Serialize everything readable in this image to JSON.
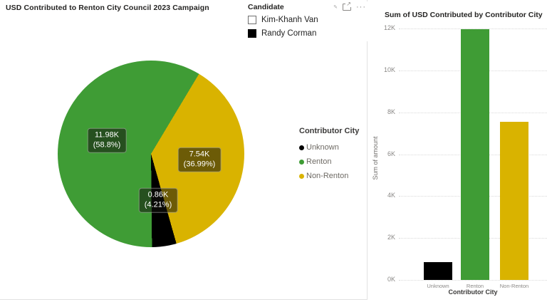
{
  "pie_visual": {
    "title": "USD Contributed to Renton City Council 2023 Campaign",
    "data_labels": [
      {
        "value": "11.98K",
        "pct": "(58.8%)"
      },
      {
        "value": "7.54K",
        "pct": "(36.99%)"
      },
      {
        "value": "0.86K",
        "pct": "(4.21%)"
      }
    ],
    "legend": {
      "title": "Contributor City",
      "items": [
        {
          "label": "Unknown",
          "color": "#000000"
        },
        {
          "label": "Renton",
          "color": "#3f9c35"
        },
        {
          "label": "Non-Renton",
          "color": "#d9b300"
        }
      ]
    }
  },
  "slicer": {
    "title": "Candidate",
    "more_options": "···",
    "items": [
      {
        "label": "Kim-Khanh Van",
        "checked": false
      },
      {
        "label": "Randy Corman",
        "checked": true
      }
    ]
  },
  "bar_visual": {
    "title": "Sum of USD Contributed by Contributor City",
    "y_axis_title": "Sum of amount",
    "x_axis_title": "Contributor City",
    "y_ticks": [
      "12K",
      "10K",
      "8K",
      "6K",
      "4K",
      "2K",
      "0K"
    ]
  },
  "chart_data": [
    {
      "type": "pie",
      "title": "USD Contributed to Renton City Council 2023 Campaign",
      "categories": [
        "Non-Renton",
        "Unknown",
        "Renton"
      ],
      "values": [
        7540,
        860,
        11980
      ],
      "percentages": [
        36.99,
        4.21,
        58.8
      ],
      "colors": [
        "#d9b300",
        "#000000",
        "#3f9c35"
      ],
      "start_angle_deg": 31,
      "legend_title": "Contributor City",
      "legend_position": "right",
      "data_labels": "value and percent"
    },
    {
      "type": "bar",
      "title": "Sum of USD Contributed by Contributor City",
      "categories": [
        "Unknown",
        "Renton",
        "Non-Renton"
      ],
      "values": [
        860,
        11980,
        7540
      ],
      "colors": [
        "#000000",
        "#3f9c35",
        "#d9b300"
      ],
      "xlabel": "Contributor City",
      "ylabel": "Sum of amount",
      "ylim": [
        0,
        12000
      ],
      "grid": "dotted horizontal"
    }
  ]
}
